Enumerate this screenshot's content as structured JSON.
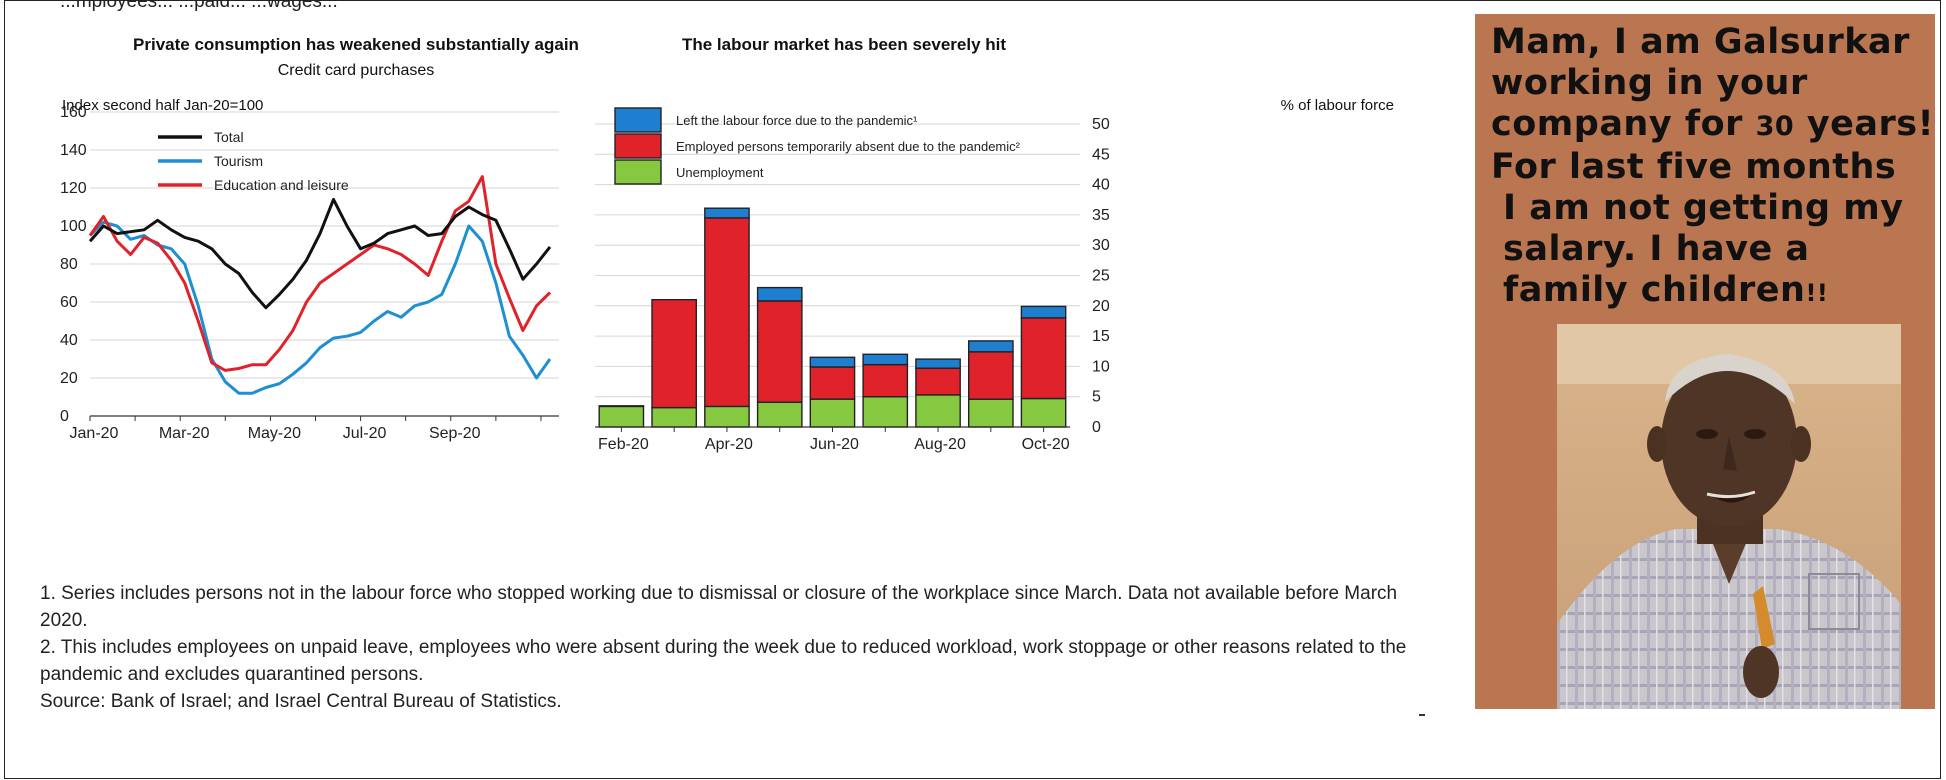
{
  "top_caption": "...mployees... ...paid... ...wages...",
  "left_chart": {
    "title": "Private consumption has weakened substantially again",
    "subtitle": "Credit card purchases",
    "ylabel": "Index second half Jan-20=100"
  },
  "right_chart": {
    "title": "The labour market has been severely hit",
    "ylabel": "% of labour force"
  },
  "notes": {
    "note1": "1. Series includes persons not in the labour force who stopped working due to dismissal or closure of the workplace since March. Data not available before March 2020.",
    "note2": "2. This includes employees on unpaid leave, employees who were absent during the week due to reduced workload, work stoppage or other reasons related to the pandemic and excludes quarantined persons.",
    "source": "Source: Bank of Israel; and Israel Central Bureau of Statistics."
  },
  "meme": {
    "line1": "Mam, I am Galsurkar",
    "line2": "working in your",
    "line3a": "company for ",
    "line3b": "30",
    "line3c": " years!",
    "line4": "For last five months",
    "line5": "I am not getting my",
    "line6": "salary. I have a",
    "line7a": "family children",
    "line7b": "!!"
  },
  "colors": {
    "total": "#111111",
    "tourism": "#1e8fd0",
    "education": "#e0232a",
    "left_labour_force": "#1e7fd0",
    "temporarily_absent": "#e0232a",
    "unemployment": "#86c940",
    "meme_background": "#b97650"
  },
  "chart_data": [
    {
      "type": "line",
      "title": "Private consumption has weakened substantially again",
      "subtitle": "Credit card purchases",
      "ylabel": "Index second half Jan-20=100",
      "ylim": [
        0,
        160
      ],
      "yticks": [
        0,
        20,
        40,
        60,
        80,
        100,
        120,
        140,
        160
      ],
      "x_tick_labels": [
        "Jan-20",
        "Mar-20",
        "May-20",
        "Jul-20",
        "Sep-20"
      ],
      "x_domain_months": [
        0,
        10.4
      ],
      "legend_placement": "top-left",
      "grid": true,
      "series": [
        {
          "name": "Total",
          "x": [
            0,
            0.3,
            0.6,
            0.9,
            1.2,
            1.5,
            1.8,
            2.1,
            2.4,
            2.7,
            3.0,
            3.3,
            3.6,
            3.9,
            4.2,
            4.5,
            4.8,
            5.1,
            5.4,
            5.7,
            6.0,
            6.3,
            6.6,
            6.9,
            7.2,
            7.5,
            7.8,
            8.1,
            8.4,
            8.7,
            9.0,
            9.3,
            9.6,
            9.9,
            10.2
          ],
          "values": [
            92,
            100,
            96,
            97,
            98,
            103,
            98,
            94,
            92,
            88,
            80,
            75,
            65,
            57,
            64,
            72,
            82,
            96,
            114,
            100,
            88,
            91,
            96,
            98,
            100,
            95,
            96,
            105,
            110,
            106,
            103,
            88,
            72,
            80,
            89
          ]
        },
        {
          "name": "Tourism",
          "x": [
            0,
            0.3,
            0.6,
            0.9,
            1.2,
            1.5,
            1.8,
            2.1,
            2.4,
            2.7,
            3.0,
            3.3,
            3.6,
            3.9,
            4.2,
            4.5,
            4.8,
            5.1,
            5.4,
            5.7,
            6.0,
            6.3,
            6.6,
            6.9,
            7.2,
            7.5,
            7.8,
            8.1,
            8.4,
            8.7,
            9.0,
            9.3,
            9.6,
            9.9,
            10.2
          ],
          "values": [
            95,
            102,
            100,
            93,
            95,
            90,
            88,
            80,
            58,
            30,
            18,
            12,
            12,
            15,
            17,
            22,
            28,
            36,
            41,
            42,
            44,
            50,
            55,
            52,
            58,
            60,
            64,
            80,
            100,
            92,
            70,
            42,
            32,
            20,
            30
          ]
        },
        {
          "name": "Education and leisure",
          "x": [
            0,
            0.3,
            0.6,
            0.9,
            1.2,
            1.5,
            1.8,
            2.1,
            2.4,
            2.7,
            3.0,
            3.3,
            3.6,
            3.9,
            4.2,
            4.5,
            4.8,
            5.1,
            5.4,
            5.7,
            6.0,
            6.3,
            6.6,
            6.9,
            7.2,
            7.5,
            7.8,
            8.1,
            8.4,
            8.7,
            9.0,
            9.3,
            9.6,
            9.9,
            10.2
          ],
          "values": [
            95,
            105,
            92,
            85,
            94,
            91,
            82,
            70,
            50,
            28,
            24,
            25,
            27,
            27,
            35,
            45,
            60,
            70,
            75,
            80,
            85,
            90,
            88,
            85,
            80,
            74,
            92,
            108,
            113,
            126,
            80,
            62,
            45,
            58,
            65
          ]
        }
      ]
    },
    {
      "type": "bar",
      "stacked": true,
      "title": "The labour market has been severely hit",
      "ylabel": "% of labour force",
      "ylim": [
        0,
        50
      ],
      "yticks": [
        0,
        5,
        10,
        15,
        20,
        25,
        30,
        35,
        40,
        45,
        50
      ],
      "axis_side": "right",
      "categories": [
        "Feb-20",
        "Mar-20",
        "Apr-20",
        "May-20",
        "Jun-20",
        "Jul-20",
        "Aug-20",
        "Sep-20",
        "Oct-20"
      ],
      "x_tick_labels": [
        "Feb-20",
        "",
        "Apr-20",
        "",
        "Jun-20",
        "",
        "Aug-20",
        "",
        "Oct-20"
      ],
      "legend_placement": "top-left",
      "series": [
        {
          "name": "Unemployment",
          "values": [
            3.4,
            3.2,
            3.4,
            4.1,
            4.6,
            5.0,
            5.3,
            4.6,
            4.7
          ]
        },
        {
          "name": "Employed persons temporarily absent due to the pandemic²",
          "values": [
            0.1,
            17.8,
            31.1,
            16.7,
            5.3,
            5.3,
            4.4,
            7.8,
            13.3
          ]
        },
        {
          "name": "Left the labour force due to the pandemic¹",
          "values": [
            0,
            0,
            1.6,
            2.2,
            1.6,
            1.7,
            1.5,
            1.8,
            1.9
          ]
        }
      ]
    }
  ]
}
